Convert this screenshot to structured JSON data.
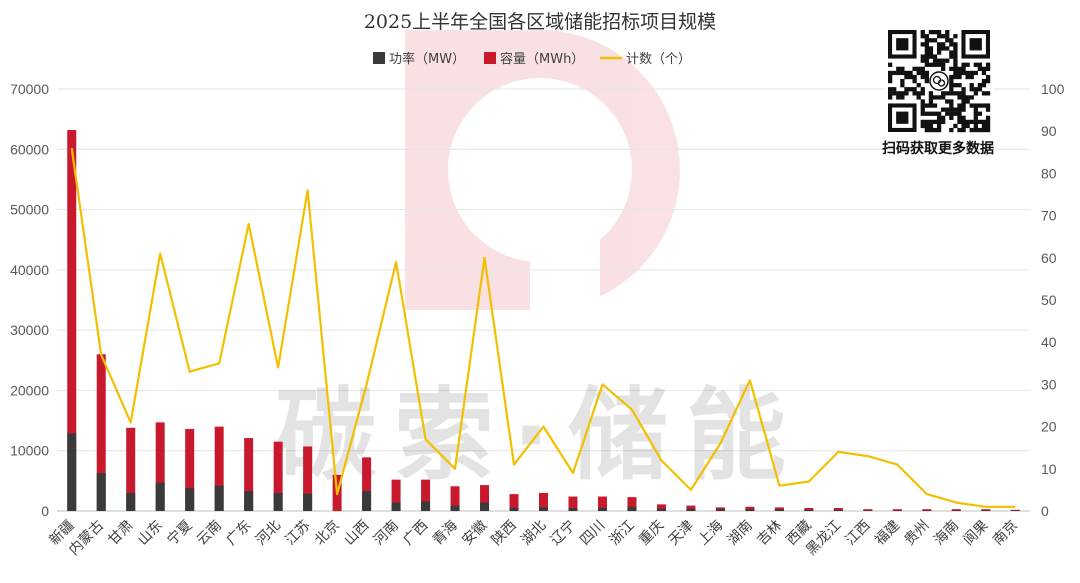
{
  "chart_data": {
    "type": "bar",
    "title": "2025上半年全国各区域储能招标项目规模",
    "categories": [
      "新疆",
      "内蒙古",
      "甘肃",
      "山东",
      "宁夏",
      "云南",
      "广东",
      "河北",
      "江苏",
      "北京",
      "山西",
      "河南",
      "广西",
      "青海",
      "安徽",
      "陕西",
      "湖北",
      "辽宁",
      "四川",
      "浙江",
      "重庆",
      "天津",
      "上海",
      "湖南",
      "吉林",
      "西藏",
      "黑龙江",
      "江西",
      "福建",
      "贵州",
      "海南",
      "阆果",
      "南京"
    ],
    "series": [
      {
        "name": "功率（MW）",
        "axis": "left",
        "kind": "bar",
        "color": "#3a3a3a",
        "values": [
          12900,
          6300,
          3000,
          4700,
          3800,
          4200,
          3300,
          3000,
          2900,
          0,
          3300,
          1400,
          1600,
          900,
          1400,
          500,
          600,
          500,
          500,
          700,
          400,
          400,
          300,
          300,
          300,
          200,
          200,
          100,
          100,
          100,
          100,
          100,
          100
        ]
      },
      {
        "name": "容量（MWh）",
        "axis": "left",
        "kind": "bar",
        "color": "#c8192e",
        "values": [
          63200,
          26000,
          13800,
          14700,
          13600,
          14000,
          12100,
          11500,
          10700,
          6000,
          8900,
          5200,
          5200,
          4100,
          4300,
          2800,
          3000,
          2400,
          2400,
          2300,
          1100,
          900,
          600,
          700,
          600,
          500,
          500,
          300,
          300,
          300,
          300,
          300,
          200
        ]
      },
      {
        "name": "计数（个）",
        "axis": "right",
        "kind": "line",
        "color": "#f2c000",
        "values": [
          86,
          37,
          21,
          61,
          33,
          35,
          68,
          34,
          76,
          4,
          30,
          59,
          17,
          10,
          60,
          11,
          20,
          9,
          30,
          24,
          12,
          5,
          16,
          31,
          6,
          7,
          14,
          13,
          11,
          4,
          2,
          1,
          1
        ]
      }
    ],
    "ylim_left": [
      0,
      70000
    ],
    "yticks_left": [
      "0",
      "10000",
      "20000",
      "30000",
      "40000",
      "50000",
      "60000",
      "70000"
    ],
    "ylim_right": [
      0,
      100
    ],
    "yticks_right": [
      "0",
      "10",
      "20",
      "30",
      "40",
      "50",
      "60",
      "70",
      "80",
      "90",
      "100"
    ],
    "grid": true,
    "legend_position": "top-center"
  },
  "watermark": {
    "text": "碳索·储能"
  },
  "qr": {
    "caption": "扫码获取更多数据"
  }
}
